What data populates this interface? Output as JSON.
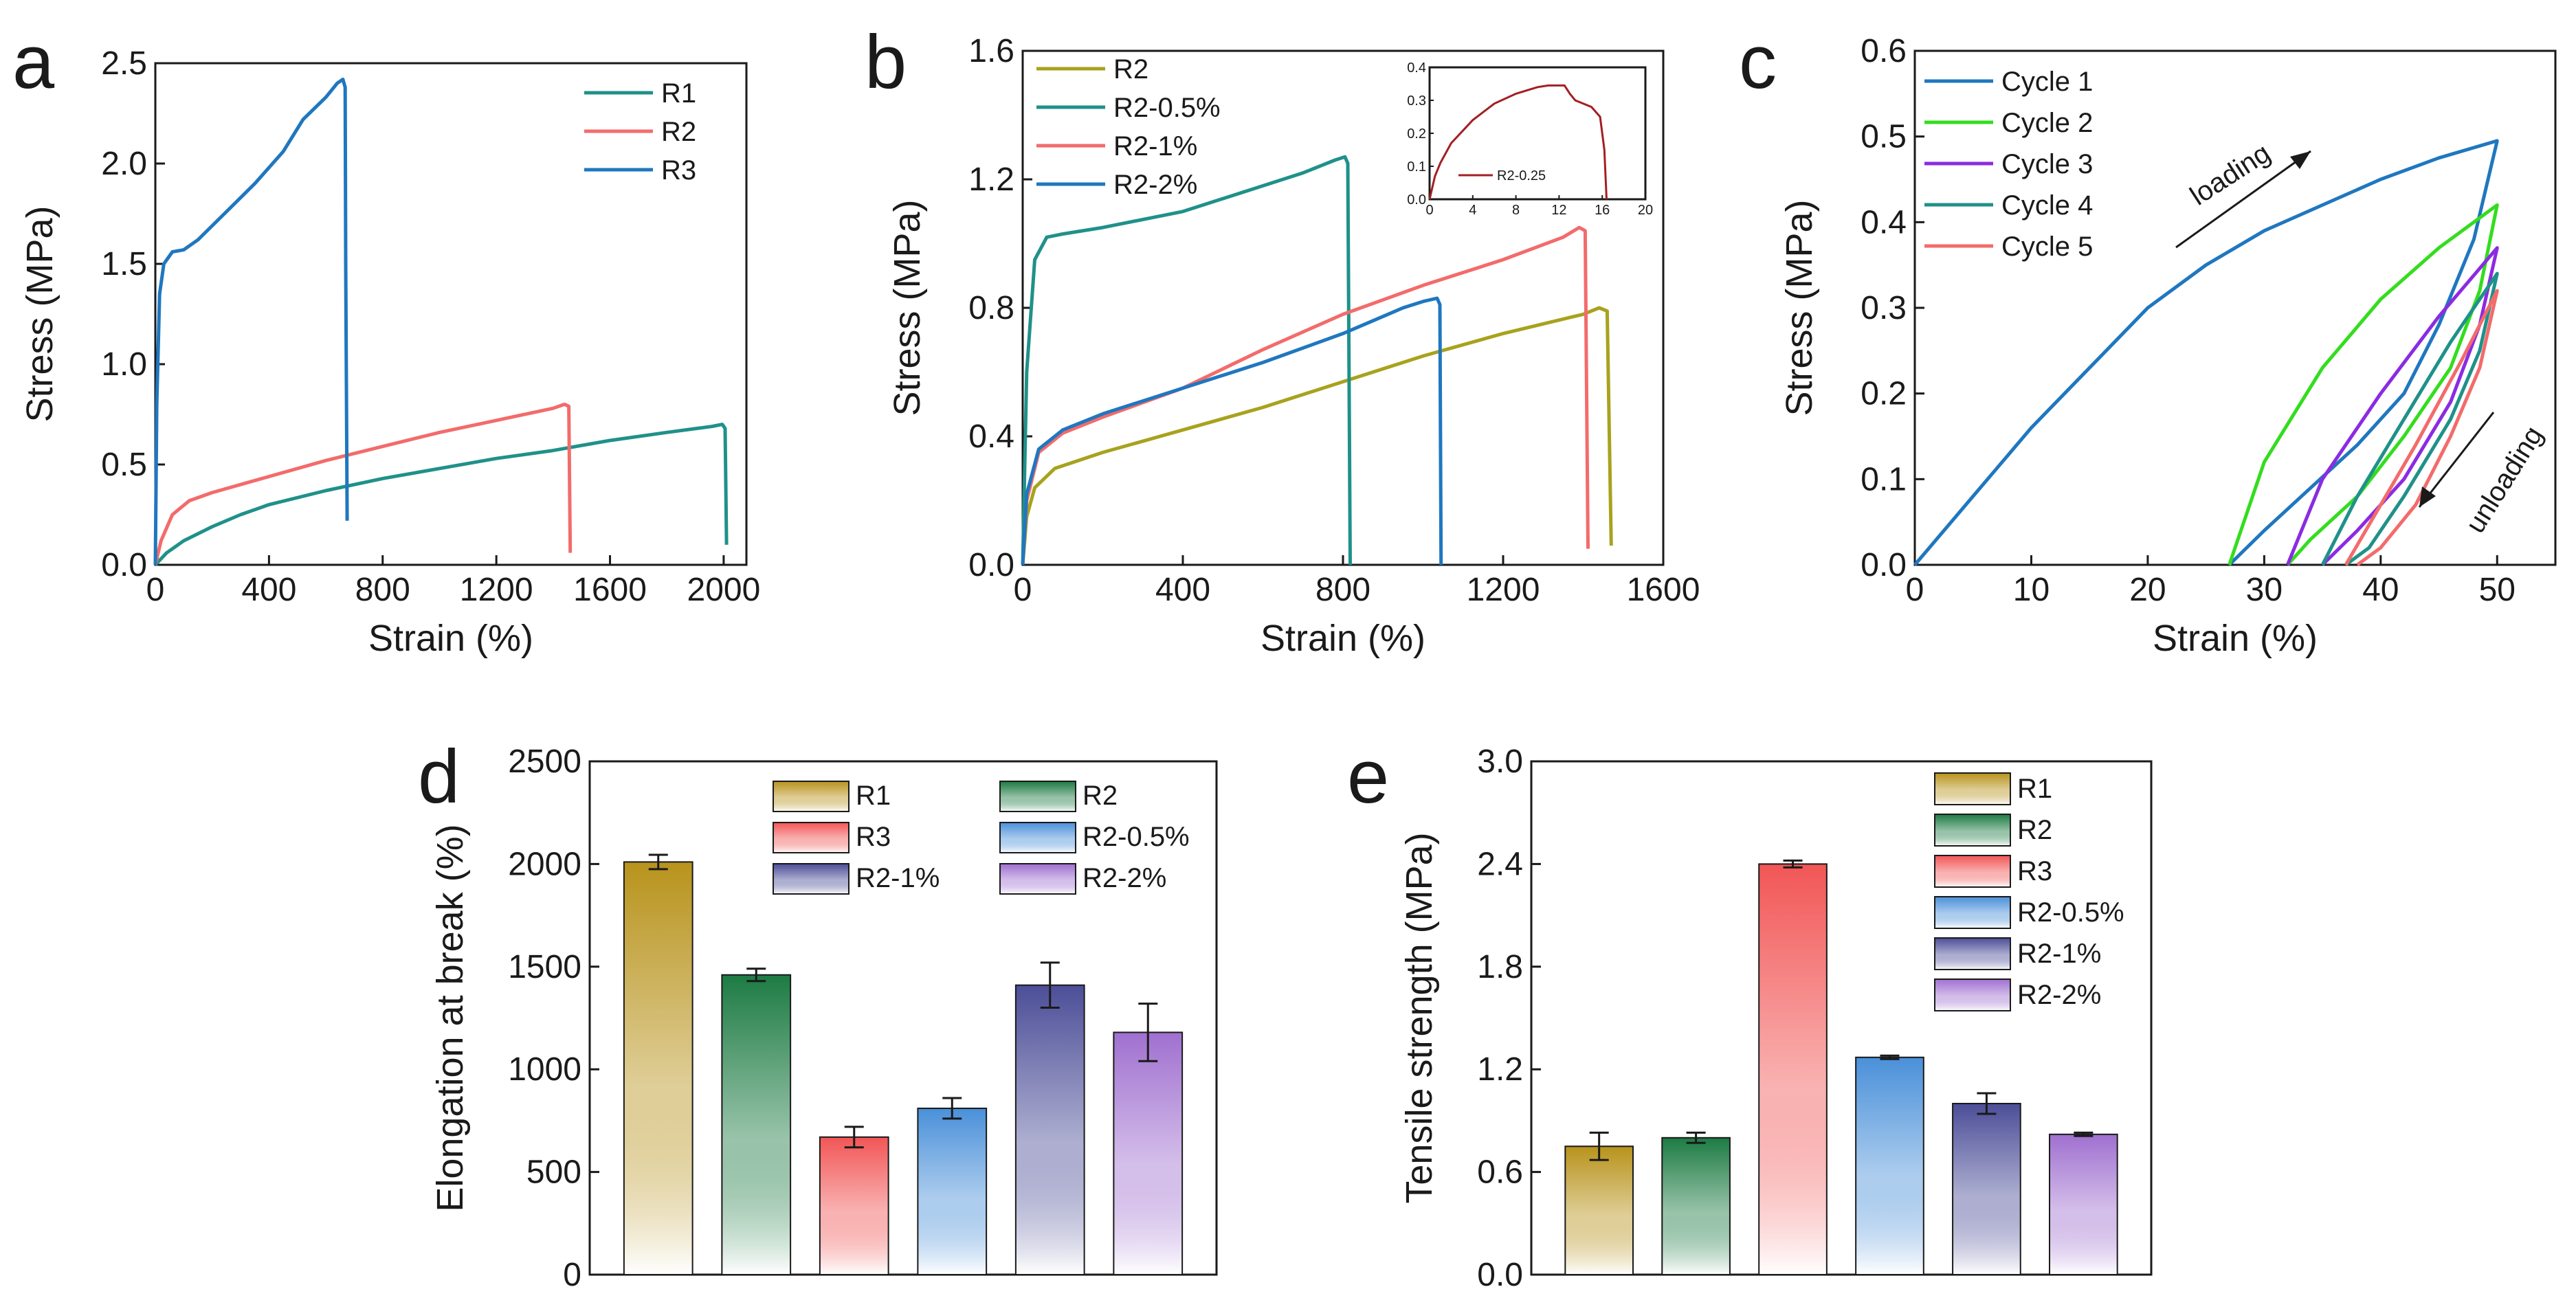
{
  "figure": {
    "panel_letters": [
      "a",
      "b",
      "c",
      "d",
      "e"
    ]
  },
  "chart_data": [
    {
      "id": "a",
      "type": "line",
      "xlabel": "Strain (%)",
      "ylabel": "Stress (MPa)",
      "xlim": [
        0,
        2080
      ],
      "ylim": [
        0,
        2.5
      ],
      "xticks": [
        0,
        400,
        800,
        1200,
        1600,
        2000
      ],
      "yticks": [
        0.0,
        0.5,
        1.0,
        1.5,
        2.0,
        2.5
      ],
      "legend": "top-right",
      "series": [
        {
          "name": "R1",
          "color": "#1f9189",
          "points": [
            [
              0,
              0
            ],
            [
              40,
              0.06
            ],
            [
              100,
              0.12
            ],
            [
              200,
              0.19
            ],
            [
              300,
              0.25
            ],
            [
              400,
              0.3
            ],
            [
              600,
              0.37
            ],
            [
              800,
              0.43
            ],
            [
              1000,
              0.48
            ],
            [
              1200,
              0.53
            ],
            [
              1400,
              0.57
            ],
            [
              1600,
              0.62
            ],
            [
              1800,
              0.66
            ],
            [
              1960,
              0.69
            ],
            [
              1995,
              0.7
            ],
            [
              2005,
              0.68
            ],
            [
              2010,
              0.1
            ]
          ]
        },
        {
          "name": "R2",
          "color": "#f36b6b",
          "points": [
            [
              0,
              0
            ],
            [
              20,
              0.12
            ],
            [
              60,
              0.25
            ],
            [
              120,
              0.32
            ],
            [
              200,
              0.36
            ],
            [
              400,
              0.44
            ],
            [
              600,
              0.52
            ],
            [
              800,
              0.59
            ],
            [
              1000,
              0.66
            ],
            [
              1200,
              0.72
            ],
            [
              1400,
              0.78
            ],
            [
              1440,
              0.8
            ],
            [
              1455,
              0.79
            ],
            [
              1460,
              0.06
            ]
          ]
        },
        {
          "name": "R3",
          "color": "#1f77bf",
          "points": [
            [
              0,
              0
            ],
            [
              5,
              0.8
            ],
            [
              15,
              1.35
            ],
            [
              30,
              1.5
            ],
            [
              60,
              1.56
            ],
            [
              100,
              1.57
            ],
            [
              150,
              1.62
            ],
            [
              250,
              1.76
            ],
            [
              350,
              1.9
            ],
            [
              450,
              2.06
            ],
            [
              520,
              2.22
            ],
            [
              600,
              2.33
            ],
            [
              640,
              2.4
            ],
            [
              660,
              2.42
            ],
            [
              668,
              2.38
            ],
            [
              670,
              1.5
            ],
            [
              675,
              0.22
            ]
          ]
        }
      ]
    },
    {
      "id": "b",
      "type": "line",
      "xlabel": "Strain (%)",
      "ylabel": "Stress (MPa)",
      "xlim": [
        0,
        1600
      ],
      "ylim": [
        0,
        1.6
      ],
      "xticks": [
        0,
        400,
        800,
        1200,
        1600
      ],
      "yticks": [
        0.0,
        0.4,
        0.8,
        1.2,
        1.6
      ],
      "legend": "top-left",
      "series": [
        {
          "name": "R2",
          "color": "#a8a21e",
          "points": [
            [
              0,
              0
            ],
            [
              10,
              0.15
            ],
            [
              30,
              0.24
            ],
            [
              80,
              0.3
            ],
            [
              200,
              0.35
            ],
            [
              400,
              0.42
            ],
            [
              600,
              0.49
            ],
            [
              800,
              0.57
            ],
            [
              1000,
              0.65
            ],
            [
              1200,
              0.72
            ],
            [
              1400,
              0.78
            ],
            [
              1440,
              0.8
            ],
            [
              1460,
              0.79
            ],
            [
              1470,
              0.06
            ]
          ]
        },
        {
          "name": "R2-0.5%",
          "color": "#1f9189",
          "points": [
            [
              0,
              0
            ],
            [
              10,
              0.6
            ],
            [
              30,
              0.95
            ],
            [
              60,
              1.02
            ],
            [
              100,
              1.03
            ],
            [
              200,
              1.05
            ],
            [
              400,
              1.1
            ],
            [
              600,
              1.18
            ],
            [
              700,
              1.22
            ],
            [
              780,
              1.26
            ],
            [
              805,
              1.27
            ],
            [
              812,
              1.25
            ],
            [
              818,
              0.0
            ]
          ]
        },
        {
          "name": "R2-1%",
          "color": "#f36b6b",
          "points": [
            [
              0,
              0
            ],
            [
              10,
              0.2
            ],
            [
              40,
              0.35
            ],
            [
              100,
              0.41
            ],
            [
              200,
              0.46
            ],
            [
              400,
              0.55
            ],
            [
              600,
              0.67
            ],
            [
              800,
              0.78
            ],
            [
              1000,
              0.87
            ],
            [
              1200,
              0.95
            ],
            [
              1350,
              1.02
            ],
            [
              1390,
              1.05
            ],
            [
              1405,
              1.04
            ],
            [
              1412,
              0.05
            ]
          ]
        },
        {
          "name": "R2-2%",
          "color": "#1f77bf",
          "points": [
            [
              0,
              0
            ],
            [
              10,
              0.22
            ],
            [
              40,
              0.36
            ],
            [
              100,
              0.42
            ],
            [
              200,
              0.47
            ],
            [
              400,
              0.55
            ],
            [
              600,
              0.63
            ],
            [
              800,
              0.72
            ],
            [
              950,
              0.8
            ],
            [
              1000,
              0.82
            ],
            [
              1035,
              0.83
            ],
            [
              1042,
              0.81
            ],
            [
              1045,
              0.0
            ]
          ]
        }
      ],
      "inset": {
        "xlim": [
          0,
          20
        ],
        "ylim": [
          0,
          0.4
        ],
        "xticks": [
          0,
          4,
          8,
          12,
          16,
          20
        ],
        "yticks": [
          0.0,
          0.1,
          0.2,
          0.3,
          0.4
        ],
        "series": [
          {
            "name": "R2-0.25",
            "color": "#a31f23",
            "points": [
              [
                0,
                0
              ],
              [
                0.5,
                0.07
              ],
              [
                1,
                0.11
              ],
              [
                2,
                0.17
              ],
              [
                4,
                0.24
              ],
              [
                6,
                0.29
              ],
              [
                8,
                0.32
              ],
              [
                10,
                0.34
              ],
              [
                11,
                0.345
              ],
              [
                12.5,
                0.345
              ],
              [
                13,
                0.32
              ],
              [
                13.5,
                0.3
              ],
              [
                15,
                0.28
              ],
              [
                15.8,
                0.25
              ],
              [
                16.2,
                0.15
              ],
              [
                16.4,
                0.0
              ]
            ]
          }
        ]
      }
    },
    {
      "id": "c",
      "type": "line",
      "xlabel": "Strain (%)",
      "ylabel": "Stress (MPa)",
      "xlim": [
        0,
        55
      ],
      "ylim": [
        0,
        0.6
      ],
      "xticks": [
        0,
        10,
        20,
        30,
        40,
        50
      ],
      "yticks": [
        0.0,
        0.1,
        0.2,
        0.3,
        0.4,
        0.5,
        0.6
      ],
      "legend": "top-left",
      "annotations": [
        "loading",
        "unloading"
      ],
      "series": [
        {
          "name": "Cycle 1",
          "color": "#1f77bf",
          "points": [
            [
              0,
              0
            ],
            [
              5,
              0.08
            ],
            [
              10,
              0.16
            ],
            [
              15,
              0.23
            ],
            [
              20,
              0.3
            ],
            [
              25,
              0.35
            ],
            [
              30,
              0.39
            ],
            [
              35,
              0.42
            ],
            [
              40,
              0.45
            ],
            [
              45,
              0.475
            ],
            [
              50,
              0.495
            ],
            [
              48,
              0.38
            ],
            [
              45,
              0.28
            ],
            [
              42,
              0.2
            ],
            [
              38,
              0.14
            ],
            [
              34,
              0.09
            ],
            [
              30,
              0.04
            ],
            [
              27,
              0.0
            ]
          ]
        },
        {
          "name": "Cycle 2",
          "color": "#33dd1e",
          "points": [
            [
              27,
              0
            ],
            [
              30,
              0.12
            ],
            [
              35,
              0.23
            ],
            [
              40,
              0.31
            ],
            [
              45,
              0.37
            ],
            [
              50,
              0.42
            ],
            [
              48.5,
              0.32
            ],
            [
              46,
              0.23
            ],
            [
              42,
              0.15
            ],
            [
              38,
              0.08
            ],
            [
              34,
              0.03
            ],
            [
              32,
              0.0
            ]
          ]
        },
        {
          "name": "Cycle 3",
          "color": "#8b2be2",
          "points": [
            [
              32,
              0
            ],
            [
              35,
              0.1
            ],
            [
              40,
              0.2
            ],
            [
              45,
              0.29
            ],
            [
              50,
              0.37
            ],
            [
              48.5,
              0.28
            ],
            [
              46,
              0.19
            ],
            [
              42,
              0.1
            ],
            [
              38,
              0.04
            ],
            [
              35,
              0.0
            ]
          ]
        },
        {
          "name": "Cycle 4",
          "color": "#1f9189",
          "points": [
            [
              35,
              0
            ],
            [
              38,
              0.08
            ],
            [
              42,
              0.17
            ],
            [
              46,
              0.26
            ],
            [
              50,
              0.34
            ],
            [
              48.5,
              0.25
            ],
            [
              46,
              0.17
            ],
            [
              42,
              0.08
            ],
            [
              39,
              0.02
            ],
            [
              37,
              0.0
            ]
          ]
        },
        {
          "name": "Cycle 5",
          "color": "#f36b6b",
          "points": [
            [
              37,
              0
            ],
            [
              40,
              0.07
            ],
            [
              43,
              0.14
            ],
            [
              47,
              0.24
            ],
            [
              50,
              0.32
            ],
            [
              48.5,
              0.23
            ],
            [
              46,
              0.15
            ],
            [
              43,
              0.07
            ],
            [
              40,
              0.02
            ],
            [
              38,
              0.0
            ]
          ]
        }
      ]
    },
    {
      "id": "d",
      "type": "bar",
      "ylabel": "Elongation at break (%)",
      "ylim": [
        0,
        2500
      ],
      "yticks": [
        0,
        500,
        1000,
        1500,
        2000,
        2500
      ],
      "legend": "top-right",
      "categories": [
        "R1",
        "R2",
        "R3",
        "R2-0.5%",
        "R2-1%",
        "R2-2%"
      ],
      "values": [
        2010,
        1460,
        670,
        810,
        1410,
        1180
      ],
      "errors": [
        35,
        30,
        50,
        50,
        110,
        140
      ],
      "colors": [
        "#b8931c",
        "#1d7b43",
        "#f25656",
        "#4a90d9",
        "#4c4e98",
        "#a070d0"
      ]
    },
    {
      "id": "e",
      "type": "bar",
      "ylabel": "Tensile strength (MPa)",
      "ylim": [
        0,
        3.0
      ],
      "yticks": [
        0.0,
        0.6,
        1.2,
        1.8,
        2.4,
        3.0
      ],
      "legend": "top-right",
      "categories": [
        "R1",
        "R2",
        "R3",
        "R2-0.5%",
        "R2-1%",
        "R2-2%"
      ],
      "values": [
        0.75,
        0.8,
        2.4,
        1.27,
        1.0,
        0.82
      ],
      "errors": [
        0.08,
        0.03,
        0.02,
        0.01,
        0.06,
        0.01
      ],
      "colors": [
        "#b8931c",
        "#1d7b43",
        "#f25656",
        "#4a90d9",
        "#4c4e98",
        "#a070d0"
      ]
    }
  ]
}
